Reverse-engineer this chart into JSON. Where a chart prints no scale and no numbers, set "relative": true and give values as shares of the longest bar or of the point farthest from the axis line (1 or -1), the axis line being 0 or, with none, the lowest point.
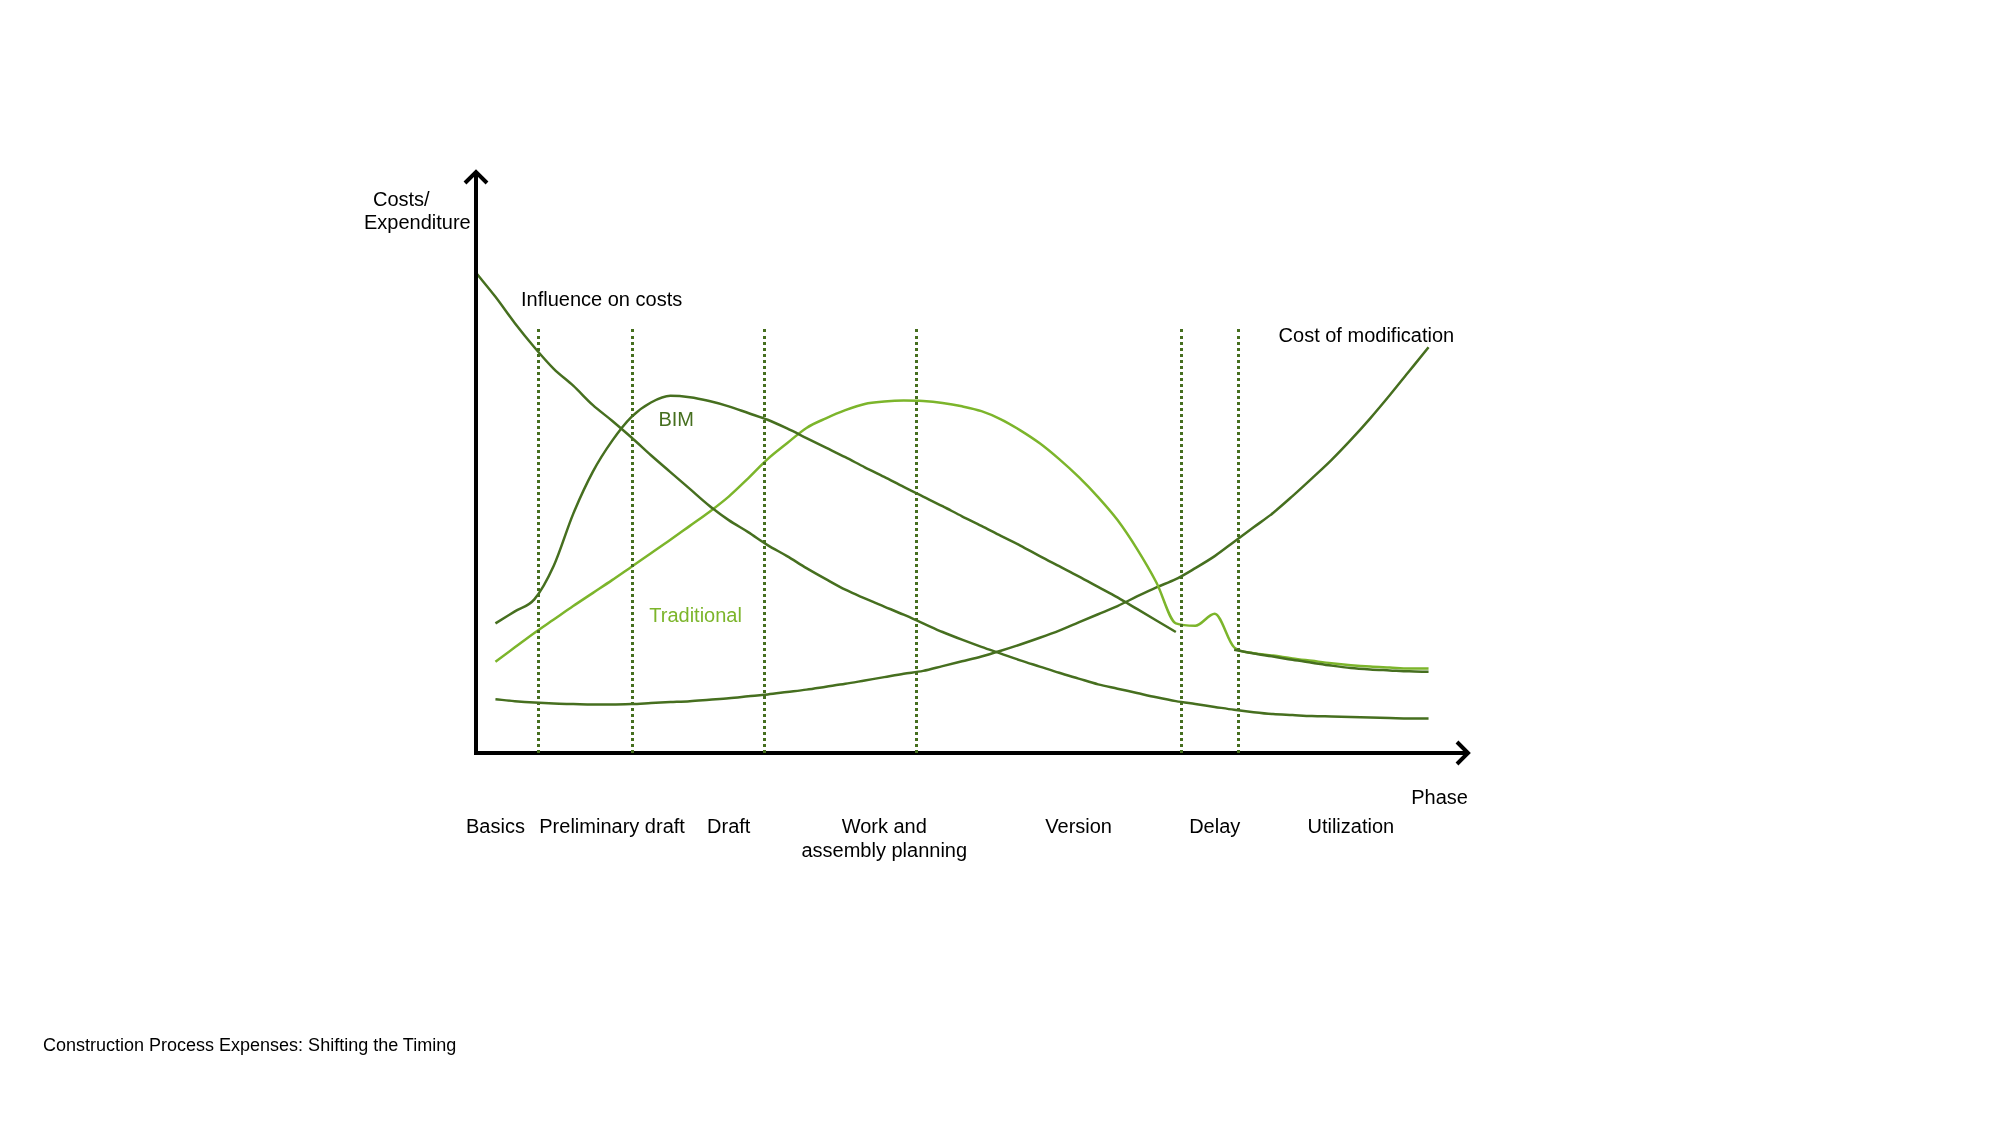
{
  "chart_data": {
    "type": "line",
    "relative": true,
    "xlabel": "Phase",
    "ylabel": "Costs/\nExpenditure",
    "grid": "x",
    "legend": false,
    "marker": "none",
    "line_style": "solid",
    "annotations": [
      "Construction Process Expenses: Shifting the Timing"
    ],
    "categories": [
      null,
      "Basics",
      null,
      null,
      null,
      null,
      null,
      "Preliminary draft",
      null,
      null,
      null,
      null,
      null,
      "Draft",
      null,
      null,
      null,
      null,
      null,
      null,
      null,
      "Work and\nassembly planning",
      null,
      null,
      null,
      null,
      null,
      null,
      null,
      null,
      null,
      "Version",
      null,
      null,
      null,
      null,
      null,
      null,
      "Delay",
      null,
      null,
      null,
      null,
      null,
      null,
      "Utilization",
      null,
      null,
      null,
      null,
      null
    ],
    "series": [
      {
        "name": "Influence on costs",
        "color": "#466f1f",
        "values": [
          1.0,
          0.95,
          0.895,
          0.845,
          0.8,
          0.765,
          0.725,
          0.692,
          0.657,
          0.62,
          0.585,
          0.55,
          0.515,
          0.485,
          0.46,
          0.433,
          0.41,
          0.385,
          0.362,
          0.34,
          0.322,
          0.305,
          0.288,
          0.27,
          0.252,
          0.236,
          0.221,
          0.207,
          0.193,
          0.18,
          0.167,
          0.155,
          0.143,
          0.134,
          0.125,
          0.116,
          0.108,
          0.102,
          0.096,
          0.09,
          0.085,
          0.081,
          0.079,
          0.077,
          0.076,
          0.075,
          0.074,
          0.073,
          0.072,
          0.072,
          null
        ]
      },
      {
        "name": "BIM",
        "color": "#466f1f",
        "values": [
          null,
          0.27,
          0.295,
          0.32,
          0.39,
          0.498,
          0.585,
          0.65,
          0.7,
          0.73,
          0.744,
          0.741,
          0.733,
          0.722,
          0.708,
          0.694,
          0.676,
          0.656,
          0.636,
          0.616,
          0.595,
          0.575,
          0.554,
          0.534,
          0.514,
          0.493,
          0.473,
          0.452,
          0.432,
          0.41,
          0.389,
          0.368,
          0.346,
          0.324,
          0.3,
          0.276,
          0.252,
          null,
          null,
          0.215,
          0.207,
          0.201,
          0.194,
          0.188,
          0.182,
          0.177,
          0.174,
          0.172,
          0.17,
          0.169,
          null
        ]
      },
      {
        "name": "Traditional",
        "color": "#7cb52b",
        "values": [
          null,
          0.19,
          0.22,
          0.25,
          0.278,
          0.306,
          0.333,
          0.36,
          0.388,
          0.416,
          0.444,
          0.473,
          0.502,
          0.534,
          0.572,
          0.612,
          0.645,
          0.677,
          0.697,
          0.714,
          0.727,
          0.732,
          0.734,
          0.733,
          0.729,
          0.722,
          0.712,
          0.695,
          0.672,
          0.645,
          0.612,
          0.575,
          0.533,
          0.485,
          0.425,
          0.355,
          0.27,
          0.265,
          0.29,
          0.22,
          0.208,
          0.203,
          0.197,
          0.192,
          0.187,
          0.183,
          0.18,
          0.178,
          0.176,
          0.176,
          null
        ]
      },
      {
        "name": "Cost of modification",
        "color": "#466f1f",
        "values": [
          null,
          0.112,
          0.108,
          0.105,
          0.103,
          0.102,
          0.101,
          0.101,
          0.102,
          0.104,
          0.106,
          0.108,
          0.111,
          0.114,
          0.118,
          0.122,
          0.127,
          0.132,
          0.138,
          0.144,
          0.151,
          0.158,
          0.165,
          0.171,
          0.181,
          0.191,
          0.201,
          0.213,
          0.226,
          0.24,
          0.255,
          0.272,
          0.289,
          0.306,
          0.326,
          0.345,
          0.362,
          0.385,
          0.41,
          0.44,
          0.47,
          0.5,
          0.535,
          0.572,
          0.61,
          0.652,
          0.697,
          0.745,
          0.795,
          0.845,
          null
        ]
      }
    ]
  }
}
